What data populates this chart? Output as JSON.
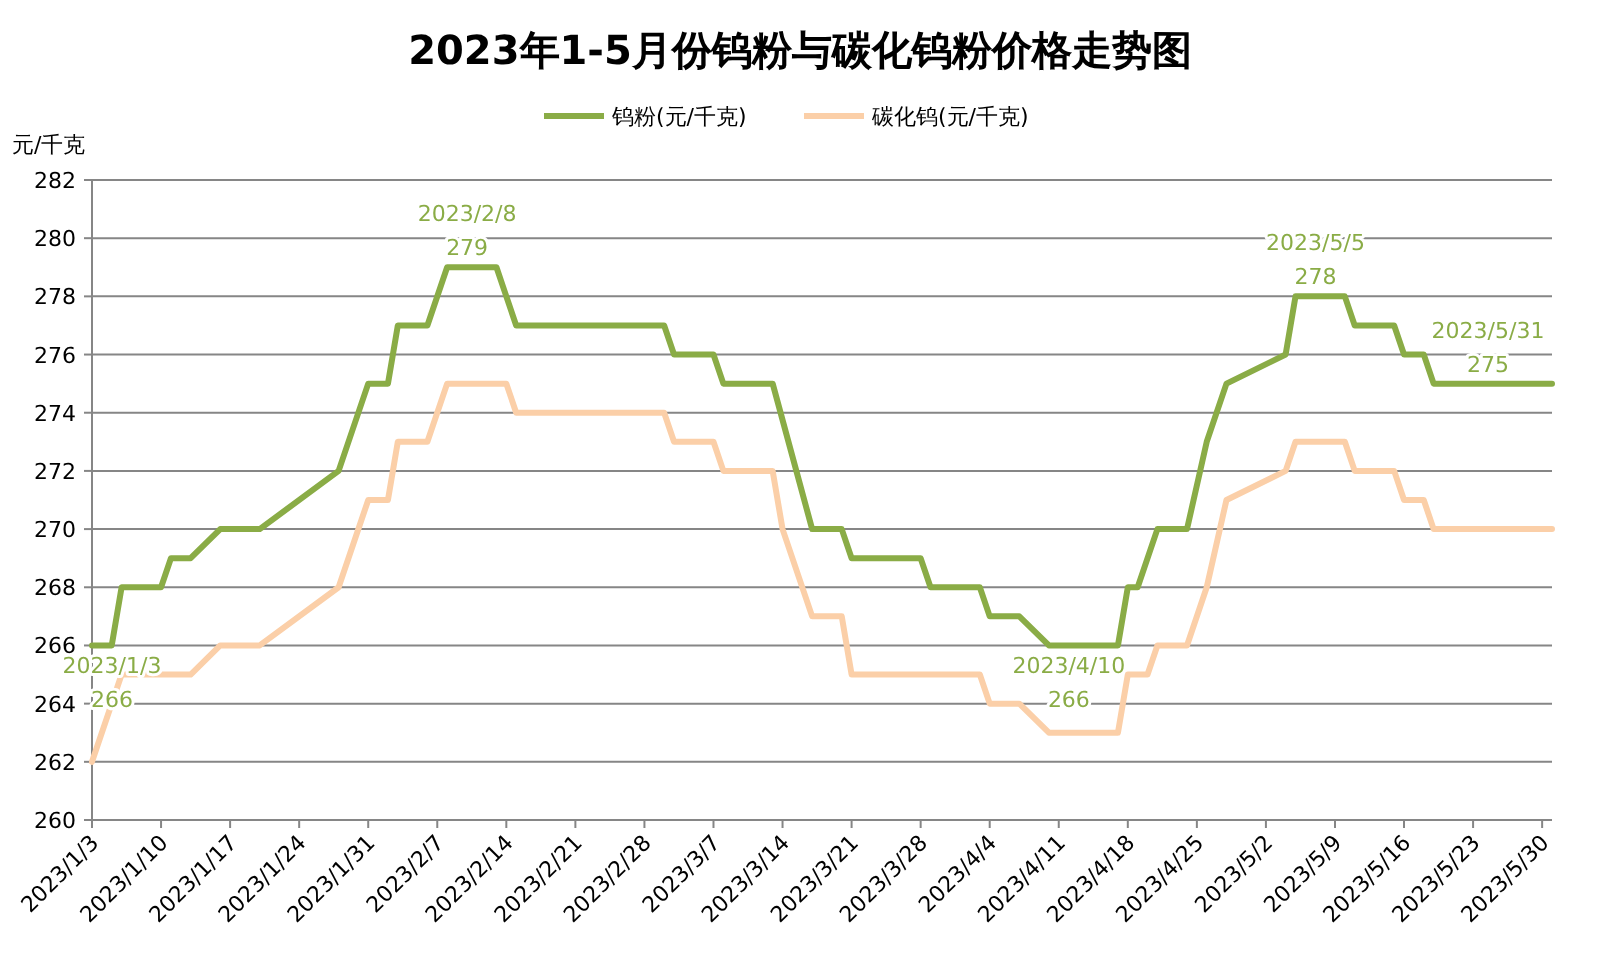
{
  "chart_data": {
    "type": "line",
    "title": "2023年1-5月份钨粉与碳化钨粉价格走势图",
    "ylabel": "元/千克",
    "xlim": [
      "2023-01-03",
      "2023-05-31"
    ],
    "ylim": [
      260,
      282
    ],
    "xticks": [
      {
        "value": "2023-01-03",
        "label": "2023/1/3"
      },
      {
        "value": "2023-01-10",
        "label": "2023/1/10"
      },
      {
        "value": "2023-01-17",
        "label": "2023/1/17"
      },
      {
        "value": "2023-01-24",
        "label": "2023/1/24"
      },
      {
        "value": "2023-01-31",
        "label": "2023/1/31"
      },
      {
        "value": "2023-02-07",
        "label": "2023/2/7"
      },
      {
        "value": "2023-02-14",
        "label": "2023/2/14"
      },
      {
        "value": "2023-02-21",
        "label": "2023/2/21"
      },
      {
        "value": "2023-02-28",
        "label": "2023/2/28"
      },
      {
        "value": "2023-03-07",
        "label": "2023/3/7"
      },
      {
        "value": "2023-03-14",
        "label": "2023/3/14"
      },
      {
        "value": "2023-03-21",
        "label": "2023/3/21"
      },
      {
        "value": "2023-03-28",
        "label": "2023/3/28"
      },
      {
        "value": "2023-04-04",
        "label": "2023/4/4"
      },
      {
        "value": "2023-04-11",
        "label": "2023/4/11"
      },
      {
        "value": "2023-04-18",
        "label": "2023/4/18"
      },
      {
        "value": "2023-04-25",
        "label": "2023/4/25"
      },
      {
        "value": "2023-05-02",
        "label": "2023/5/2"
      },
      {
        "value": "2023-05-09",
        "label": "2023/5/9"
      },
      {
        "value": "2023-05-16",
        "label": "2023/5/16"
      },
      {
        "value": "2023-05-23",
        "label": "2023/5/23"
      },
      {
        "value": "2023-05-30",
        "label": "2023/5/30"
      }
    ],
    "yticks": [
      260,
      262,
      264,
      266,
      268,
      270,
      272,
      274,
      276,
      278,
      280,
      282
    ],
    "grid": "y",
    "legend": "top",
    "marker": "none",
    "line_style": "solid",
    "series": [
      {
        "name": "钨粉(元/千克)",
        "color": "#8aac46",
        "x": [
          "2023-01-03",
          "2023-01-05",
          "2023-01-06",
          "2023-01-10",
          "2023-01-11",
          "2023-01-13",
          "2023-01-16",
          "2023-01-20",
          "2023-01-28",
          "2023-01-31",
          "2023-02-02",
          "2023-02-03",
          "2023-02-06",
          "2023-02-08",
          "2023-02-13",
          "2023-02-15",
          "2023-03-02",
          "2023-03-03",
          "2023-03-07",
          "2023-03-08",
          "2023-03-13",
          "2023-03-17",
          "2023-03-20",
          "2023-03-21",
          "2023-03-28",
          "2023-03-29",
          "2023-04-03",
          "2023-04-04",
          "2023-04-07",
          "2023-04-10",
          "2023-04-17",
          "2023-04-18",
          "2023-04-19",
          "2023-04-21",
          "2023-04-24",
          "2023-04-26",
          "2023-04-28",
          "2023-05-04",
          "2023-05-05",
          "2023-05-10",
          "2023-05-11",
          "2023-05-15",
          "2023-05-16",
          "2023-05-18",
          "2023-05-19",
          "2023-05-31"
        ],
        "values": [
          266,
          266,
          268,
          268,
          269,
          269,
          270,
          270,
          272,
          275,
          275,
          277,
          277,
          279,
          279,
          277,
          277,
          276,
          276,
          275,
          275,
          270,
          270,
          269,
          269,
          268,
          268,
          267,
          267,
          266,
          266,
          268,
          268,
          270,
          270,
          273,
          275,
          276,
          278,
          278,
          277,
          277,
          276,
          276,
          275,
          275
        ]
      },
      {
        "name": "碳化钨(元/千克)",
        "color": "#fbcfa8",
        "x": [
          "2023-01-03",
          "2023-01-06",
          "2023-01-13",
          "2023-01-16",
          "2023-01-20",
          "2023-01-28",
          "2023-01-31",
          "2023-02-02",
          "2023-02-03",
          "2023-02-06",
          "2023-02-08",
          "2023-02-14",
          "2023-02-15",
          "2023-03-02",
          "2023-03-03",
          "2023-03-07",
          "2023-03-08",
          "2023-03-13",
          "2023-03-14",
          "2023-03-17",
          "2023-03-20",
          "2023-03-21",
          "2023-04-03",
          "2023-04-04",
          "2023-04-07",
          "2023-04-10",
          "2023-04-17",
          "2023-04-18",
          "2023-04-20",
          "2023-04-21",
          "2023-04-24",
          "2023-04-26",
          "2023-04-28",
          "2023-05-04",
          "2023-05-05",
          "2023-05-10",
          "2023-05-11",
          "2023-05-15",
          "2023-05-16",
          "2023-05-18",
          "2023-05-19",
          "2023-05-31"
        ],
        "values": [
          262,
          265,
          265,
          266,
          266,
          268,
          271,
          271,
          273,
          273,
          275,
          275,
          274,
          274,
          273,
          273,
          272,
          272,
          270,
          267,
          267,
          265,
          265,
          264,
          264,
          263,
          263,
          265,
          265,
          266,
          266,
          268,
          271,
          272,
          273,
          273,
          272,
          272,
          271,
          271,
          270,
          270
        ]
      }
    ],
    "annotations": [
      {
        "text": "2023/1/3\n266",
        "x": "2023-01-03",
        "y": 266
      },
      {
        "text": "2023/2/8\n279",
        "x": "2023-02-08",
        "y": 279
      },
      {
        "text": "2023/4/10\n266",
        "x": "2023-04-10",
        "y": 266
      },
      {
        "text": "2023/5/5\n278",
        "x": "2023-05-05",
        "y": 278
      },
      {
        "text": "2023/5/31\n275",
        "x": "2023-05-31",
        "y": 275
      }
    ]
  }
}
